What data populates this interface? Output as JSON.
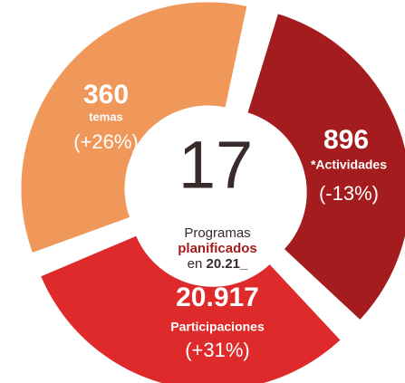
{
  "center": {
    "number": "17",
    "line1": "Programas",
    "line2": "planificados",
    "line3_prefix": "en",
    "line3_bold": "20.21_"
  },
  "segments": [
    {
      "value": "360",
      "label": "temas",
      "change": "(+26%)"
    },
    {
      "value": "896",
      "label": "*Actividades",
      "change": "(-13%)"
    },
    {
      "value": "20.917",
      "label": "Participaciones",
      "change": "(+31%)"
    }
  ]
}
